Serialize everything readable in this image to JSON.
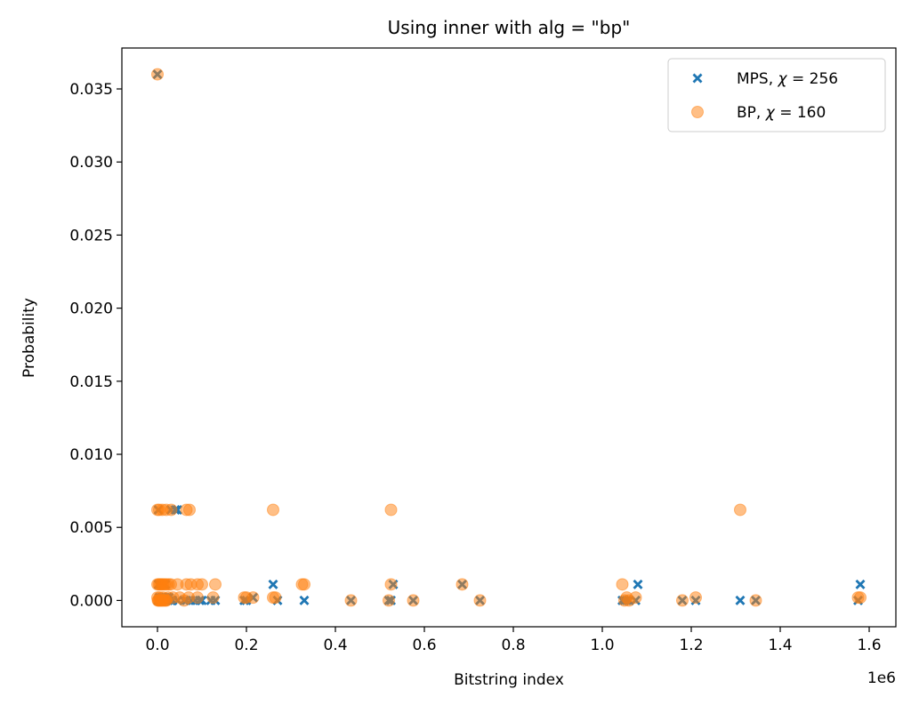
{
  "chart_data": {
    "type": "scatter",
    "title": "Using inner with alg = \"bp\"",
    "xlabel": "Bitstring index",
    "ylabel": "Probability",
    "x_offset_label": "1e6",
    "xlim": [
      -0.08,
      1.66
    ],
    "ylim": [
      -0.0018,
      0.0378
    ],
    "xticks": [
      0.0,
      0.2,
      0.4,
      0.6,
      0.8,
      1.0,
      1.2,
      1.4,
      1.6
    ],
    "xtick_labels": [
      "0.0",
      "0.2",
      "0.4",
      "0.6",
      "0.8",
      "1.0",
      "1.2",
      "1.4",
      "1.6"
    ],
    "yticks": [
      0.0,
      0.005,
      0.01,
      0.015,
      0.02,
      0.025,
      0.03,
      0.035
    ],
    "ytick_labels": [
      "0.000",
      "0.005",
      "0.010",
      "0.015",
      "0.020",
      "0.025",
      "0.030",
      "0.035"
    ],
    "legend_position": "top-right",
    "series": [
      {
        "name": "MPS, χ = 256",
        "legend_prefix": "MPS, ",
        "legend_chi": "χ",
        "legend_suffix": " = 256",
        "marker": "x",
        "color": "#1f77b4",
        "x": [
          0.0,
          0.001,
          0.003,
          0.005,
          0.008,
          0.012,
          0.016,
          0.02,
          0.024,
          0.03,
          0.034,
          0.002,
          0.006,
          0.01,
          0.014,
          0.018,
          0.004,
          0.009,
          0.013,
          0.017,
          0.022,
          0.026,
          0.033,
          0.045,
          0.06,
          0.065,
          0.075,
          0.085,
          0.095,
          0.1,
          0.12,
          0.13,
          0.195,
          0.2,
          0.215,
          0.26,
          0.27,
          0.33,
          0.435,
          0.52,
          0.525,
          0.53,
          0.575,
          0.685,
          0.725,
          1.045,
          1.05,
          1.055,
          1.06,
          1.075,
          1.08,
          1.18,
          1.21,
          1.31,
          1.345,
          1.575,
          1.58,
          0.002,
          0.03,
          0.04,
          0.045
        ],
        "y": [
          0.036,
          0.0,
          0.0,
          0.0,
          0.0,
          0.0,
          0.0,
          0.0,
          0.0,
          0.0,
          0.0,
          0.0011,
          0.0011,
          0.0011,
          0.0011,
          0.0011,
          0.0002,
          0.0002,
          0.0002,
          0.0002,
          0.0002,
          0.0002,
          0.0,
          0.0,
          0.0,
          0.0,
          0.0,
          0.0,
          0.0,
          0.0,
          0.0,
          0.0,
          0.0,
          0.0,
          0.0002,
          0.0011,
          0.0,
          0.0,
          0.0,
          0.0,
          0.0,
          0.0011,
          0.0,
          0.0011,
          0.0,
          0.0,
          0.0,
          0.0,
          0.0,
          0.0,
          0.0011,
          0.0,
          0.0,
          0.0,
          0.0,
          0.0,
          0.0011,
          0.0062,
          0.0062,
          0.0062,
          0.0062
        ]
      },
      {
        "name": "BP, χ = 160",
        "legend_prefix": "BP, ",
        "legend_chi": "χ",
        "legend_suffix": " = 160",
        "marker": "o",
        "color": "#ff7f0e",
        "alpha": 0.5,
        "x": [
          0.0,
          0.001,
          0.002,
          0.004,
          0.006,
          0.008,
          0.01,
          0.012,
          0.015,
          0.018,
          0.02,
          0.0,
          0.003,
          0.006,
          0.009,
          0.012,
          0.016,
          0.02,
          0.025,
          0.03,
          0.045,
          0.065,
          0.075,
          0.09,
          0.1,
          0.13,
          0.0,
          0.004,
          0.011,
          0.02,
          0.031,
          0.065,
          0.072,
          0.26,
          0.525,
          1.31,
          0.195,
          0.2,
          0.215,
          0.26,
          0.265,
          0.325,
          0.33,
          0.435,
          0.52,
          0.525,
          0.575,
          0.685,
          0.725,
          1.045,
          1.05,
          1.055,
          1.06,
          1.075,
          1.18,
          1.21,
          1.345,
          1.575,
          1.58,
          0.0,
          0.005,
          0.013,
          0.024,
          0.035,
          0.05,
          0.07,
          0.09,
          0.125,
          0.06
        ],
        "y": [
          0.036,
          0.0,
          0.0,
          0.0,
          0.0,
          0.0,
          0.0,
          0.0,
          0.0,
          0.0,
          0.0,
          0.0011,
          0.0011,
          0.0011,
          0.0011,
          0.0011,
          0.0011,
          0.0011,
          0.0011,
          0.0011,
          0.0011,
          0.0011,
          0.0011,
          0.0011,
          0.0011,
          0.0011,
          0.0062,
          0.0062,
          0.0062,
          0.0062,
          0.0062,
          0.0062,
          0.0062,
          0.0062,
          0.0062,
          0.0062,
          0.0002,
          0.0002,
          0.0002,
          0.0002,
          0.0002,
          0.0011,
          0.0011,
          0.0,
          0.0,
          0.0011,
          0.0,
          0.0011,
          0.0,
          0.0011,
          0.0,
          0.0002,
          0.0,
          0.0002,
          0.0,
          0.0002,
          0.0,
          0.0002,
          0.0002,
          0.0002,
          0.0002,
          0.0002,
          0.0002,
          0.0002,
          0.0002,
          0.0002,
          0.0002,
          0.0002,
          0.0
        ]
      }
    ]
  }
}
